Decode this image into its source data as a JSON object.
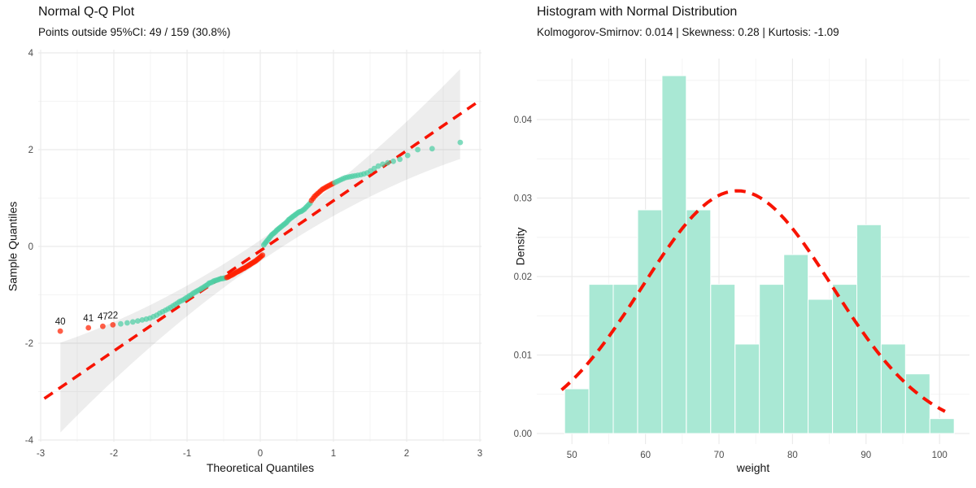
{
  "page": {
    "background": "#ffffff"
  },
  "style": {
    "grid_major_color": "#EBEBEB",
    "grid_minor_color": "#F4F4F4",
    "tick_label_color": "#4D4D4D",
    "axis_title_color": "#141414",
    "title_color": "#141414"
  },
  "chart_data": [
    {
      "type": "scatter",
      "subtype": "qq-plot",
      "title": "Normal Q-Q Plot",
      "subtitle": "Points outside 95%CI: 49 / 159 (30.8%)",
      "xlabel": "Theoretical Quantiles",
      "ylabel": "Sample Quantiles",
      "xlim": [
        -3.03,
        3.03
      ],
      "ylim": [
        -4.05,
        4.05
      ],
      "x_ticks": [
        -3,
        -2,
        -1,
        0,
        1,
        2,
        3
      ],
      "y_ticks": [
        -4,
        -2,
        0,
        2,
        4
      ],
      "x_minor_ticks": [
        -2.5,
        -1.5,
        -0.5,
        0.5,
        1.5,
        2.5
      ],
      "y_minor_ticks": [
        -3,
        -1,
        1,
        3
      ],
      "grid": true,
      "legend": false,
      "n_points": 159,
      "points_outside_ci": 49,
      "sample_quantiles": [
        -1.75,
        -1.68,
        -1.65,
        -1.62,
        -1.6,
        -1.58,
        -1.56,
        -1.54,
        -1.52,
        -1.5,
        -1.48,
        -1.45,
        -1.42,
        -1.38,
        -1.35,
        -1.32,
        -1.29,
        -1.26,
        -1.23,
        -1.2,
        -1.17,
        -1.14,
        -1.12,
        -1.1,
        -1.07,
        -1.05,
        -1.02,
        -1.0,
        -0.97,
        -0.95,
        -0.93,
        -0.91,
        -0.89,
        -0.87,
        -0.85,
        -0.83,
        -0.81,
        -0.79,
        -0.76,
        -0.75,
        -0.74,
        -0.72,
        -0.71,
        -0.7,
        -0.69,
        -0.68,
        -0.67,
        -0.665,
        -0.66,
        -0.655,
        -0.65,
        -0.64,
        -0.63,
        -0.615,
        -0.6,
        -0.59,
        -0.575,
        -0.56,
        -0.545,
        -0.53,
        -0.52,
        -0.505,
        -0.49,
        -0.475,
        -0.46,
        -0.45,
        -0.435,
        -0.42,
        -0.405,
        -0.39,
        -0.375,
        -0.36,
        -0.345,
        -0.33,
        -0.315,
        -0.3,
        -0.28,
        -0.26,
        -0.24,
        -0.22,
        -0.2,
        -0.18,
        0.03,
        0.06,
        0.09,
        0.12,
        0.15,
        0.18,
        0.21,
        0.24,
        0.26,
        0.28,
        0.3,
        0.33,
        0.35,
        0.37,
        0.39,
        0.41,
        0.43,
        0.45,
        0.47,
        0.49,
        0.52,
        0.55,
        0.57,
        0.59,
        0.61,
        0.63,
        0.65,
        0.67,
        0.69,
        0.71,
        0.72,
        0.73,
        0.75,
        0.77,
        0.8,
        0.83,
        0.86,
        0.89,
        0.95,
        0.99,
        1.03,
        1.06,
        1.09,
        1.12,
        1.15,
        1.18,
        1.2,
        1.22,
        1.24,
        1.26,
        1.28,
        1.3,
        1.32,
        1.34,
        1.36,
        1.38,
        1.4,
        1.42,
        1.43,
        1.44,
        1.45,
        1.46,
        1.47,
        1.48,
        1.5,
        1.52,
        1.56,
        1.61,
        1.66,
        1.7,
        1.73,
        1.76,
        1.8,
        1.88,
        2.0,
        2.02,
        2.15
      ],
      "red_index_ranges": [
        [
          1,
          4
        ],
        [
          52,
          82
        ],
        [
          121,
          134
        ]
      ],
      "outlier_labels": [
        {
          "label": "40",
          "index": 1
        },
        {
          "label": "41",
          "index": 2
        },
        {
          "label": "47",
          "index": 3
        },
        {
          "label": "22",
          "index": 4
        }
      ],
      "reference_line": {
        "slope": 1.035,
        "intercept": -0.09,
        "style": "dashed",
        "color": "#F81300",
        "width": 3.6
      },
      "confidence_band": {
        "level": "95%",
        "half_width_center": 0.22,
        "half_width_quad_coef": 0.095,
        "x_range": [
          -2.73,
          2.73
        ],
        "color": "#8C8C8C",
        "opacity": 0.16
      },
      "point_color_normal": "#4FCFA5",
      "point_color_outlier": "#FF2000",
      "point_opacity": 0.72,
      "point_radius": 3.4
    },
    {
      "type": "bar",
      "subtype": "histogram-density",
      "title": "Histogram with Normal Distribution",
      "subtitle": "Kolmogorov-Smirnov: 0.014 | Skewness: 0.28 | Kurtosis: -1.09",
      "stats": {
        "kolmogorov_smirnov": 0.014,
        "skewness": 0.28,
        "kurtosis": -1.09
      },
      "xlabel": "weight",
      "ylabel": "Density",
      "xlim": [
        47.5,
        103.5
      ],
      "ylim": [
        0,
        0.0478
      ],
      "x_ticks": [
        50,
        60,
        70,
        80,
        90,
        100
      ],
      "x_minor_ticks": [
        55,
        65,
        75,
        85,
        95
      ],
      "y_ticks": [
        0,
        0.01,
        0.02,
        0.03,
        0.04
      ],
      "y_tick_labels": [
        "0.00",
        "0.01",
        "0.02",
        "0.03",
        "0.04"
      ],
      "y_minor_ticks": [
        0.005,
        0.015,
        0.025,
        0.035,
        0.045
      ],
      "grid": true,
      "legend": false,
      "n": 159,
      "bin_start": 49,
      "bin_width": 3.3125,
      "counts": [
        3,
        10,
        10,
        15,
        24,
        15,
        10,
        6,
        10,
        12,
        9,
        10,
        14,
        6,
        4,
        1
      ],
      "densities": [
        0.0057,
        0.019,
        0.019,
        0.0285,
        0.0456,
        0.0285,
        0.019,
        0.0114,
        0.019,
        0.0228,
        0.0171,
        0.019,
        0.0266,
        0.0114,
        0.0076,
        0.0019
      ],
      "bar_fill": "#A9E8D4",
      "bar_border": "#FFFFFF",
      "normal_curve": {
        "mean": 72.5,
        "sd": 12.9,
        "peak_density": 0.031,
        "x_range": [
          48.6,
          101.3
        ],
        "color": "#F81300",
        "style": "dashed",
        "width": 4
      }
    }
  ]
}
